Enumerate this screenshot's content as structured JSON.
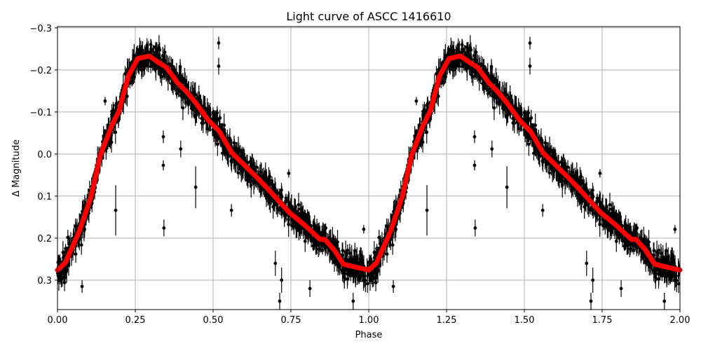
{
  "chart_data": {
    "type": "scatter",
    "title": "Light curve of ASCC 1416610",
    "xlabel": "Phase",
    "ylabel": "Δ Magnitude",
    "xlim": [
      0,
      2
    ],
    "ylim": [
      0.37,
      -0.303
    ],
    "y_inverted": true,
    "grid": true,
    "x_ticks": [
      "0.00",
      "0.25",
      "0.50",
      "0.75",
      "1.00",
      "1.25",
      "1.50",
      "1.75",
      "2.00"
    ],
    "x_tick_values": [
      0,
      0.25,
      0.5,
      0.75,
      1.0,
      1.25,
      1.5,
      1.75,
      2.0
    ],
    "y_ticks": [
      "−0.3",
      "−0.2",
      "−0.1",
      "0.0",
      "0.1",
      "0.2",
      "0.3"
    ],
    "y_tick_values": [
      -0.3,
      -0.2,
      -0.1,
      0.0,
      0.1,
      0.2,
      0.3
    ],
    "phase_repeated": 2,
    "colors": {
      "observations": "#000000",
      "model": "#ff0000",
      "grid": "#b0b0b0"
    },
    "model_curve": {
      "color": "#ff0000",
      "phase": [
        0.0,
        0.025,
        0.07,
        0.108,
        0.138,
        0.176,
        0.198,
        0.228,
        0.258,
        0.295,
        0.326,
        0.35,
        0.386,
        0.416,
        0.446,
        0.484,
        0.521,
        0.559,
        0.596,
        0.641,
        0.671,
        0.746,
        0.791,
        0.844,
        0.859,
        0.889,
        0.919,
        0.964,
        1.0
      ],
      "magnitude": [
        0.276,
        0.259,
        0.184,
        0.101,
        0.002,
        -0.07,
        -0.103,
        -0.186,
        -0.227,
        -0.233,
        -0.217,
        -0.206,
        -0.169,
        -0.147,
        -0.12,
        -0.081,
        -0.053,
        -0.004,
        0.023,
        0.056,
        0.079,
        0.14,
        0.167,
        0.203,
        0.203,
        0.228,
        0.262,
        0.27,
        0.276
      ]
    },
    "observations": {
      "color": "#000000",
      "scatter_sigma": 0.02,
      "typical_error": 0.02,
      "outliers": [
        [
          0.153,
          -0.126,
          0.01
        ],
        [
          0.187,
          0.134,
          0.06
        ],
        [
          0.079,
          0.315,
          0.015
        ],
        [
          0.34,
          0.027,
          0.012
        ],
        [
          0.342,
          0.176,
          0.02
        ],
        [
          0.34,
          -0.041,
          0.015
        ],
        [
          0.396,
          -0.012,
          0.02
        ],
        [
          0.444,
          0.079,
          0.05
        ],
        [
          0.518,
          -0.264,
          0.015
        ],
        [
          0.518,
          -0.209,
          0.02
        ],
        [
          0.559,
          0.134,
          0.015
        ],
        [
          0.743,
          0.046,
          0.01
        ],
        [
          0.811,
          0.32,
          0.02
        ],
        [
          0.984,
          0.179,
          0.01
        ],
        [
          0.714,
          0.35,
          0.02
        ],
        [
          0.7,
          0.26,
          0.03
        ],
        [
          0.72,
          0.3,
          0.03
        ],
        [
          0.95,
          0.35,
          0.02
        ]
      ]
    }
  }
}
